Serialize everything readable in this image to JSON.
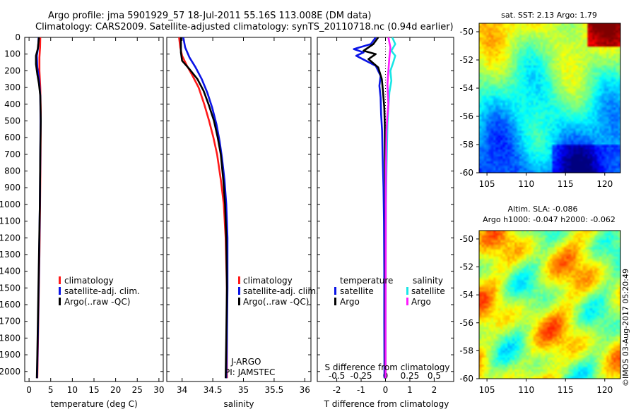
{
  "header": {
    "title_line1": "Argo profile: jma 5901929_57 18-Jul-2011 55.16S 113.008E (DM data)",
    "title_line2": "Climatology: CARS2009. Satellite-adjusted climatology: synTS_20110718.nc (0.94d earlier)"
  },
  "colors": {
    "climatology": "#ff1a1a",
    "satellite": "#0a14e6",
    "argo": "#000000",
    "sal_satellite": "#19e6e6",
    "sal_argo": "#ff19ff"
  },
  "chart_data": [
    {
      "type": "line",
      "title": "Temperature profile",
      "xlabel": "temperature (deg C)",
      "ylabel": "",
      "xlim": [
        -1,
        31
      ],
      "ylim": [
        2060,
        0
      ],
      "xticks": [
        "0",
        "5",
        "10",
        "15",
        "20",
        "25",
        "30"
      ],
      "xtick_values": [
        0,
        5,
        10,
        15,
        20,
        25,
        30
      ],
      "yticks": [
        "0",
        "100",
        "200",
        "300",
        "400",
        "500",
        "600",
        "700",
        "800",
        "900",
        "1000",
        "1100",
        "1200",
        "1300",
        "1400",
        "1500",
        "1600",
        "1700",
        "1800",
        "1900",
        "2000"
      ],
      "ytick_values": [
        0,
        100,
        200,
        300,
        400,
        500,
        600,
        700,
        800,
        900,
        1000,
        1100,
        1200,
        1300,
        1400,
        1500,
        1600,
        1700,
        1800,
        1900,
        2000
      ],
      "legend": [
        "climatology",
        "satellite-adj. clim.",
        "Argo(..raw -QC)"
      ],
      "series": [
        {
          "name": "climatology",
          "color": "#ff1a1a",
          "points": [
            [
              2.6,
              0
            ],
            [
              2.55,
              60
            ],
            [
              2.4,
              120
            ],
            [
              2.4,
              200
            ],
            [
              2.6,
              300
            ],
            [
              2.7,
              450
            ],
            [
              2.65,
              700
            ],
            [
              2.55,
              1000
            ],
            [
              2.4,
              1300
            ],
            [
              2.2,
              1600
            ],
            [
              2.0,
              1900
            ],
            [
              1.9,
              2040
            ]
          ]
        },
        {
          "name": "satellite-adj. clim.",
          "color": "#0a14e6",
          "points": [
            [
              2.2,
              0
            ],
            [
              2.1,
              60
            ],
            [
              1.8,
              110
            ],
            [
              1.9,
              180
            ],
            [
              2.3,
              250
            ],
            [
              2.6,
              350
            ],
            [
              2.65,
              500
            ],
            [
              2.6,
              700
            ],
            [
              2.5,
              1000
            ],
            [
              2.35,
              1300
            ],
            [
              2.15,
              1600
            ],
            [
              1.95,
              1900
            ],
            [
              1.85,
              2040
            ]
          ]
        },
        {
          "name": "Argo(..raw -QC)",
          "color": "#000000",
          "points": [
            [
              2.3,
              0
            ],
            [
              2.0,
              70
            ],
            [
              1.6,
              110
            ],
            [
              1.6,
              160
            ],
            [
              1.9,
              220
            ],
            [
              2.3,
              280
            ],
            [
              2.6,
              350
            ],
            [
              2.7,
              500
            ],
            [
              2.6,
              700
            ],
            [
              2.5,
              1000
            ],
            [
              2.3,
              1300
            ],
            [
              2.1,
              1600
            ],
            [
              1.9,
              1900
            ],
            [
              1.8,
              2040
            ]
          ]
        }
      ]
    },
    {
      "type": "line",
      "title": "Salinity profile",
      "xlabel": "salinity",
      "xlim": [
        33.75,
        36.1
      ],
      "ylim": [
        2060,
        0
      ],
      "xticks": [
        "34",
        "34.5",
        "35",
        "35.5",
        "36"
      ],
      "xtick_values": [
        34,
        34.5,
        35,
        35.5,
        36
      ],
      "legend": [
        "climatology",
        "satellite-adj. clim.",
        "Argo(..raw -QC)"
      ],
      "annotation": [
        "J-ARGO",
        "PI: JAMSTEC"
      ],
      "series": [
        {
          "name": "climatology",
          "color": "#ff1a1a",
          "points": [
            [
              33.95,
              0
            ],
            [
              33.97,
              60
            ],
            [
              34.0,
              110
            ],
            [
              34.08,
              170
            ],
            [
              34.17,
              230
            ],
            [
              34.27,
              300
            ],
            [
              34.36,
              400
            ],
            [
              34.44,
              500
            ],
            [
              34.51,
              600
            ],
            [
              34.57,
              700
            ],
            [
              34.63,
              850
            ],
            [
              34.68,
              1000
            ],
            [
              34.71,
              1200
            ],
            [
              34.73,
              1500
            ],
            [
              34.73,
              2040
            ]
          ]
        },
        {
          "name": "satellite-adj. clim.",
          "color": "#0a14e6",
          "points": [
            [
              34.02,
              0
            ],
            [
              34.05,
              60
            ],
            [
              34.12,
              120
            ],
            [
              34.22,
              180
            ],
            [
              34.32,
              250
            ],
            [
              34.41,
              330
            ],
            [
              34.49,
              420
            ],
            [
              34.56,
              520
            ],
            [
              34.61,
              620
            ],
            [
              34.65,
              720
            ],
            [
              34.69,
              850
            ],
            [
              34.72,
              1000
            ],
            [
              34.74,
              1200
            ],
            [
              34.74,
              1500
            ],
            [
              34.73,
              1800
            ],
            [
              34.72,
              2040
            ]
          ]
        },
        {
          "name": "Argo(..raw -QC)",
          "color": "#000000",
          "points": [
            [
              33.98,
              0
            ],
            [
              33.98,
              90
            ],
            [
              34.0,
              140
            ],
            [
              34.12,
              190
            ],
            [
              34.25,
              250
            ],
            [
              34.35,
              320
            ],
            [
              34.44,
              410
            ],
            [
              34.52,
              500
            ],
            [
              34.58,
              600
            ],
            [
              34.63,
              700
            ],
            [
              34.67,
              850
            ],
            [
              34.7,
              1000
            ],
            [
              34.72,
              1200
            ],
            [
              34.73,
              1500
            ],
            [
              34.72,
              1800
            ],
            [
              34.71,
              2040
            ]
          ]
        }
      ]
    },
    {
      "type": "line",
      "title": "Difference from climatology",
      "xlabel": "T difference from climatology",
      "xlabel_top": "S difference from climatology",
      "xlim": [
        -2.8,
        2.8
      ],
      "ylim": [
        2060,
        0
      ],
      "xticks": [
        "-2",
        "-1",
        "0",
        "1",
        "2"
      ],
      "xtick_values": [
        -2,
        -1,
        0,
        1,
        2
      ],
      "xticks_top": [
        "-0.5",
        "-0.25",
        "0",
        "0.25",
        "0.5"
      ],
      "xtick_top_values": [
        -0.5,
        -0.25,
        0,
        0.25,
        0.5
      ],
      "legend_left_title": "temperature",
      "legend_right_title": "salinity",
      "legend_left": [
        "satellite",
        "Argo"
      ],
      "legend_right": [
        "satellite",
        "Argo"
      ],
      "series": [
        {
          "name": "T satellite",
          "color": "#0a14e6",
          "points": [
            [
              -0.4,
              0
            ],
            [
              -0.6,
              40
            ],
            [
              -1.3,
              70
            ],
            [
              -0.9,
              90
            ],
            [
              -1.2,
              110
            ],
            [
              -0.4,
              170
            ],
            [
              -0.2,
              230
            ],
            [
              -0.25,
              290
            ],
            [
              -0.2,
              360
            ],
            [
              -0.18,
              460
            ],
            [
              -0.14,
              560
            ],
            [
              -0.12,
              700
            ],
            [
              -0.08,
              900
            ],
            [
              -0.06,
              1100
            ],
            [
              -0.05,
              1400
            ],
            [
              -0.05,
              1700
            ],
            [
              -0.04,
              2040
            ]
          ]
        },
        {
          "name": "T Argo",
          "color": "#000000",
          "points": [
            [
              -0.3,
              0
            ],
            [
              -0.5,
              40
            ],
            [
              -0.9,
              80
            ],
            [
              -0.4,
              100
            ],
            [
              -0.7,
              130
            ],
            [
              -0.3,
              180
            ],
            [
              -0.15,
              250
            ],
            [
              -0.1,
              330
            ],
            [
              -0.05,
              420
            ],
            [
              -0.03,
              520
            ],
            [
              -0.02,
              700
            ],
            [
              0.0,
              900
            ],
            [
              0.0,
              1200
            ],
            [
              -0.01,
              1600
            ],
            [
              -0.01,
              2040
            ]
          ]
        },
        {
          "name": "S satellite",
          "color": "#19e6e6",
          "points": [
            [
              0.07,
              0
            ],
            [
              0.1,
              40
            ],
            [
              0.06,
              80
            ],
            [
              0.1,
              110
            ],
            [
              0.08,
              150
            ],
            [
              0.05,
              200
            ],
            [
              0.06,
              260
            ],
            [
              0.04,
              330
            ],
            [
              0.03,
              420
            ],
            [
              0.02,
              520
            ],
            [
              0.015,
              650
            ],
            [
              0.01,
              800
            ],
            [
              0.005,
              1000
            ],
            [
              0.003,
              1300
            ],
            [
              0.002,
              1700
            ],
            [
              0.002,
              2040
            ]
          ]
        },
        {
          "name": "S Argo",
          "color": "#ff19ff",
          "points": [
            [
              0.03,
              0
            ],
            [
              0.05,
              60
            ],
            [
              0.04,
              120
            ],
            [
              0.03,
              200
            ],
            [
              0.02,
              280
            ],
            [
              0.025,
              340
            ],
            [
              0.03,
              400
            ],
            [
              0.018,
              480
            ],
            [
              0.01,
              560
            ],
            [
              0.008,
              650
            ],
            [
              0.005,
              800
            ],
            [
              0.003,
              1000
            ],
            [
              0.002,
              1300
            ],
            [
              0.001,
              1700
            ],
            [
              0.001,
              2040
            ]
          ]
        }
      ]
    },
    {
      "type": "heatmap",
      "title": "sat. SST: 2.13 Argo: 1.79",
      "xlim": [
        104,
        122
      ],
      "ylim": [
        -60,
        -49.4
      ],
      "xticks": [
        "105",
        "110",
        "115",
        "120"
      ],
      "xtick_values": [
        105,
        110,
        115,
        120
      ],
      "yticks": [
        "-50",
        "-52",
        "-54",
        "-56",
        "-58",
        "-60"
      ],
      "ytick_values": [
        -50,
        -52,
        -54,
        -56,
        -58,
        -60
      ],
      "marker": [
        113.008,
        -55.16
      ]
    },
    {
      "type": "heatmap",
      "title_line1": "Altim. SLA: -0.086",
      "title_line2": "Argo h1000: -0.047 h2000: -0.062",
      "xlim": [
        104,
        122
      ],
      "ylim": [
        -60,
        -49.4
      ],
      "xticks": [
        "105",
        "110",
        "115",
        "120"
      ],
      "xtick_values": [
        105,
        110,
        115,
        120
      ],
      "yticks": [
        "-50",
        "-52",
        "-54",
        "-56",
        "-58",
        "-60"
      ],
      "ytick_values": [
        -50,
        -52,
        -54,
        -56,
        -58,
        -60
      ],
      "marker": [
        113.008,
        -55.16
      ]
    }
  ],
  "footer": {
    "credit": "©IMOS 03-Aug-2017 05:20:49"
  }
}
